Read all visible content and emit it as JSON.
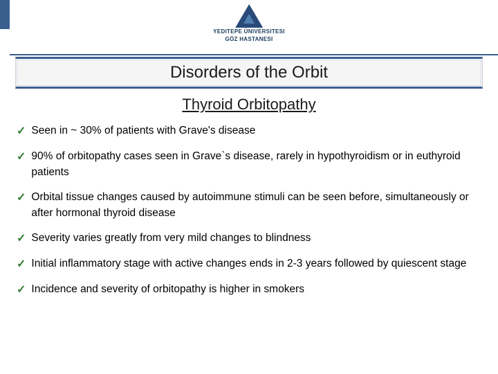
{
  "logo": {
    "line1": "YEDITEPE ÜNIVERSITESI",
    "line2": "GÖZ HASTANESI"
  },
  "title": "Disorders of the Orbit",
  "subtitle": "Thyroid Orbitopathy",
  "bullets": [
    "Seen in  ~ 30% of patients with Grave's disease",
    "90% of orbitopathy cases seen in Grave`s disease, rarely in hypothyroidism or in euthyroid patients",
    "Orbital tissue changes caused by autoimmune stimuli can be seen before, simultaneously or after hormonal thyroid disease",
    "Severity varies greatly from very mild changes to blindness",
    "Initial inflammatory stage with active changes ends in 2-3 years followed by quiescent stage",
    "Incidence and severity of orbitopathy is higher in smokers"
  ],
  "colors": {
    "accent": "#3a5f8f",
    "check": "#2e7d32",
    "text": "#000000",
    "background": "#ffffff"
  }
}
